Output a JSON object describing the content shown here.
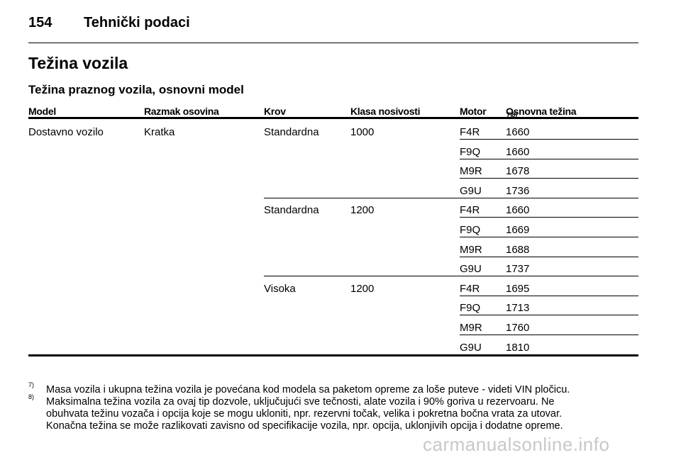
{
  "header": {
    "page_number": "154",
    "title": "Tehnički podaci"
  },
  "section_title": "Težina vozila",
  "subsection_title": "Težina praznog vozila, osnovni model",
  "table": {
    "columns": [
      "Model",
      "Razmak osovina",
      "Krov",
      "Klasa nosivosti",
      "Motor",
      "Osnovna težina"
    ],
    "weight_note_marks": "7)8)",
    "model": "Dostavno vozilo",
    "wheelbase": "Kratka",
    "groups": [
      {
        "roof": "Standardna",
        "payload": "1000",
        "engines": [
          {
            "motor": "F4R",
            "weight": "1660"
          },
          {
            "motor": "F9Q",
            "weight": "1660"
          },
          {
            "motor": "M9R",
            "weight": "1678"
          },
          {
            "motor": "G9U",
            "weight": "1736"
          }
        ]
      },
      {
        "roof": "Standardna",
        "payload": "1200",
        "engines": [
          {
            "motor": "F4R",
            "weight": "1660"
          },
          {
            "motor": "F9Q",
            "weight": "1669"
          },
          {
            "motor": "M9R",
            "weight": "1688"
          },
          {
            "motor": "G9U",
            "weight": "1737"
          }
        ]
      },
      {
        "roof": "Visoka",
        "payload": "1200",
        "engines": [
          {
            "motor": "F4R",
            "weight": "1695"
          },
          {
            "motor": "F9Q",
            "weight": "1713"
          },
          {
            "motor": "M9R",
            "weight": "1760"
          },
          {
            "motor": "G9U",
            "weight": "1810"
          }
        ]
      }
    ]
  },
  "footnotes": [
    {
      "mark": "7)",
      "lines": [
        "Masa vozila i ukupna težina vozila je povećana kod modela sa paketom opreme za loše puteve - videti VIN pločicu."
      ]
    },
    {
      "mark": "8)",
      "lines": [
        "Maksimalna težina vozila za ovaj tip dozvole, uključujući sve tečnosti, alate vozila i 90% goriva u rezervoaru. Ne",
        "obuhvata težinu vozača i opcija koje se mogu ukloniti, npr. rezervni točak, velika i pokretna bočna vrata za utovar.",
        "Konačna težina se može razlikovati zavisno od specifikacije vozila, npr. opcija, uklonjivih opcija i dodatne opreme."
      ]
    }
  ],
  "watermark": "carmanualsonline.info"
}
